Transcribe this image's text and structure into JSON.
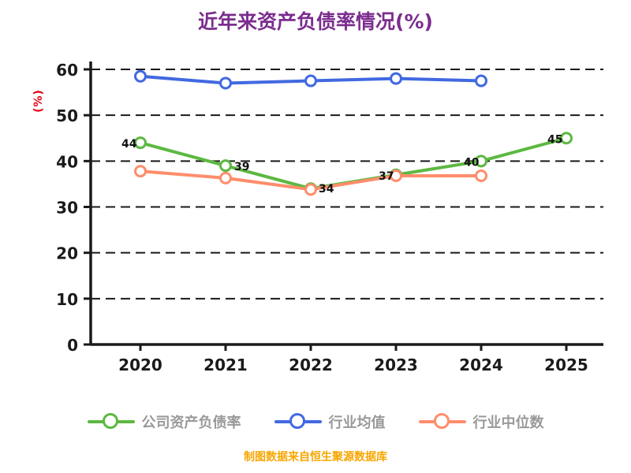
{
  "title": "近年来资产负债率情况(%)",
  "footer": "制图数据来自恒生聚源数据库",
  "colors": {
    "title": "#7b2d8e",
    "ylabel": "#e60012",
    "footer": "#f7a600",
    "axis": "#1a1a1a",
    "legend_text": "#999999",
    "background": "#ffffff"
  },
  "chart_data": {
    "type": "line",
    "title": "近年来资产负债率情况(%)",
    "ylabel": "(%)",
    "xlabel": "",
    "categories": [
      "2020",
      "2021",
      "2022",
      "2023",
      "2024",
      "2025"
    ],
    "ylim": [
      0,
      60
    ],
    "yticks": [
      0,
      10,
      20,
      30,
      40,
      50,
      60
    ],
    "grid": true,
    "grid_style": "dashed",
    "legend_position": "bottom",
    "source_note": "制图数据来自恒生聚源数据库",
    "series": [
      {
        "name": "公司资产负债率",
        "color": "#5cb841",
        "marker": "circle-open",
        "values": [
          44,
          39,
          34,
          37,
          40,
          45
        ],
        "point_labels": [
          "44",
          "39",
          "34",
          "37",
          "40",
          "45"
        ]
      },
      {
        "name": "行业均值",
        "color": "#4169e1",
        "marker": "circle-open",
        "values": [
          58.5,
          57,
          57.5,
          58,
          57.5,
          null
        ],
        "point_labels": null
      },
      {
        "name": "行业中位数",
        "color": "#ff8d6b",
        "marker": "circle-open",
        "values": [
          37.8,
          36.3,
          33.8,
          36.8,
          36.8,
          null
        ],
        "point_labels": null
      }
    ]
  }
}
